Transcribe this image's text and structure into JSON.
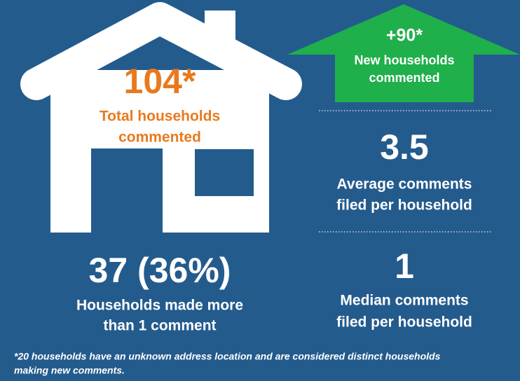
{
  "total": {
    "value": "104*",
    "label": [
      "Total households",
      "commented"
    ]
  },
  "new": {
    "value": "+90*",
    "label": [
      "New households",
      "commented"
    ]
  },
  "average": {
    "value": "3.5",
    "label": [
      "Average comments",
      "filed per household"
    ]
  },
  "multiple": {
    "value": "37 (36%)",
    "label": [
      "Households made more",
      "than 1 comment"
    ]
  },
  "median": {
    "value": "1",
    "label": [
      "Median comments",
      "filed per household"
    ]
  },
  "footnote": [
    "*20 households have an unknown address location and are considered distinct households",
    "making new comments."
  ]
}
